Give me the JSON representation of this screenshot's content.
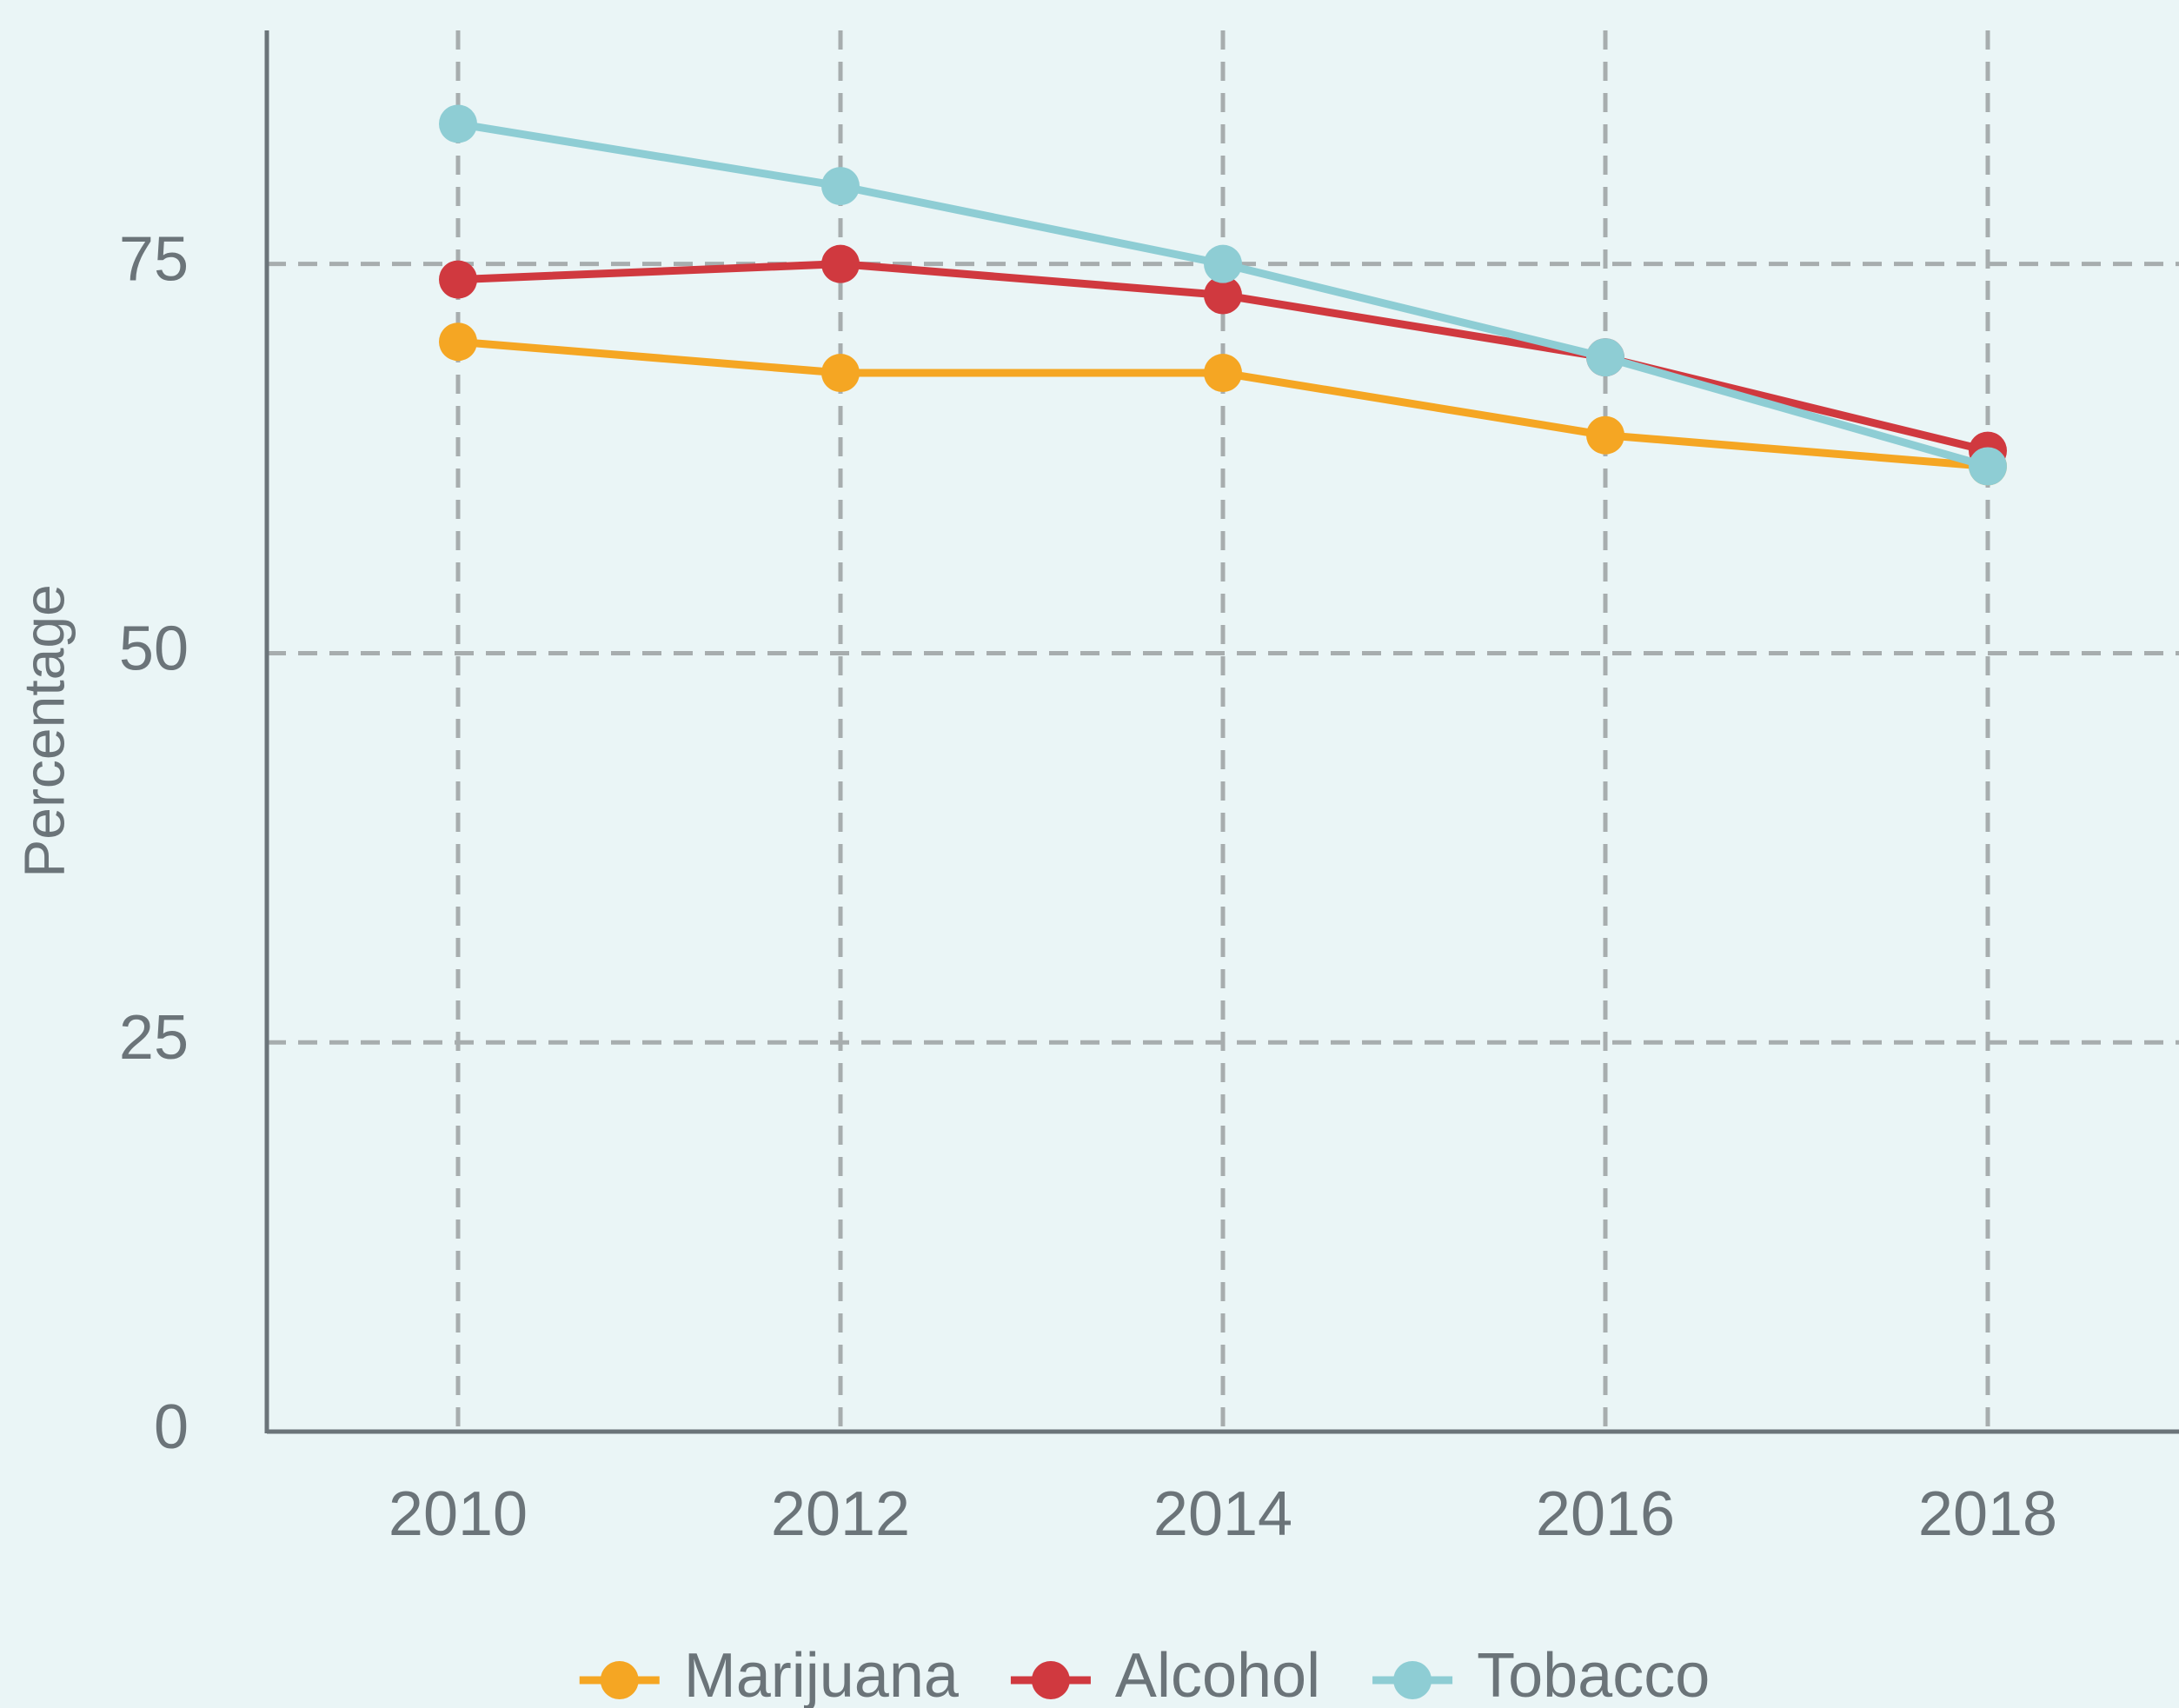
{
  "chart_data": {
    "type": "line",
    "x": [
      2010,
      2012,
      2014,
      2016,
      2018
    ],
    "series": [
      {
        "name": "Marijuana",
        "color": "#f5a623",
        "values": [
          70,
          68,
          68,
          64,
          62
        ]
      },
      {
        "name": "Alcohol",
        "color": "#d0393f",
        "values": [
          74,
          75,
          73,
          69,
          63
        ]
      },
      {
        "name": "Tobacco",
        "color": "#8ecdd4",
        "values": [
          84,
          80,
          75,
          69,
          62
        ]
      }
    ],
    "ylabel": "Percentage",
    "xlim": [
      2009,
      2019
    ],
    "xticks": [
      2010,
      2012,
      2014,
      2016,
      2018
    ],
    "ylim": [
      0,
      90
    ],
    "yticks": [
      0,
      25,
      50,
      75
    ],
    "grid": true,
    "legend": "bottom"
  }
}
